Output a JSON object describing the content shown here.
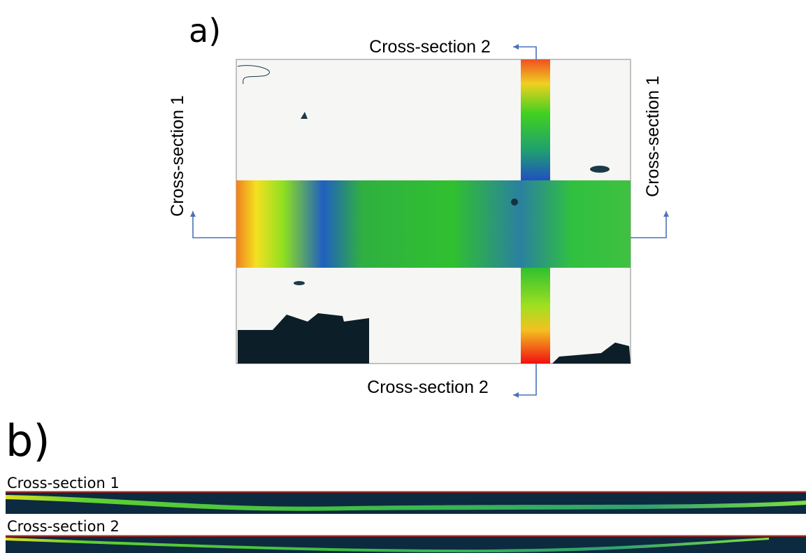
{
  "panel_a": {
    "label": "a)",
    "labels": {
      "top": "Cross-section 2",
      "bottom": "Cross-section 2",
      "left": "Cross-section 1",
      "right": "Cross-section 1"
    }
  },
  "panel_b": {
    "label": "b)",
    "profiles": [
      "Cross-section 1",
      "Cross-section 2"
    ]
  }
}
